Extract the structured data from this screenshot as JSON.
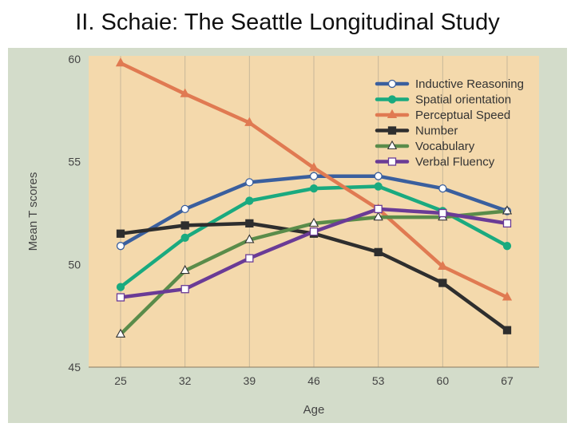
{
  "page": {
    "title": "II. Schaie: The Seattle Longitudinal Study"
  },
  "colors": {
    "panel_bg": "#d3dcca",
    "plot_bg": "#f4d9ac",
    "grid": "#c8b89a"
  },
  "chart_data": {
    "type": "line",
    "title": "",
    "xlabel": "Age",
    "ylabel": "Mean T scores",
    "categories": [
      "25",
      "32",
      "39",
      "46",
      "53",
      "60",
      "67"
    ],
    "ylim": [
      45,
      60
    ],
    "yticks": [
      "45",
      "50",
      "55",
      "60"
    ],
    "grid": "vertical lines at each age",
    "legend_position": "top-right",
    "series": [
      {
        "name": "Inductive Reasoning",
        "color": "#3a5f9e",
        "marker": "circle-open",
        "values": [
          50.9,
          52.7,
          54.0,
          54.3,
          54.3,
          53.7,
          52.6
        ]
      },
      {
        "name": "Spatial orientation",
        "color": "#1aaa7f",
        "marker": "circle-filled",
        "values": [
          48.9,
          51.3,
          53.1,
          53.7,
          53.8,
          52.6,
          50.9
        ]
      },
      {
        "name": "Perceptual Speed",
        "color": "#e07a52",
        "marker": "triangle-filled",
        "values": [
          59.8,
          58.3,
          56.9,
          54.7,
          52.7,
          49.9,
          48.4
        ]
      },
      {
        "name": "Number",
        "color": "#2e2e2e",
        "marker": "square-filled",
        "values": [
          51.5,
          51.9,
          52.0,
          51.5,
          50.6,
          49.1,
          46.8
        ]
      },
      {
        "name": "Vocabulary",
        "color": "#5a8c4a",
        "marker": "triangle-open",
        "values": [
          46.6,
          49.7,
          51.2,
          52.0,
          52.3,
          52.3,
          52.6
        ]
      },
      {
        "name": "Verbal Fluency",
        "color": "#6a3b96",
        "marker": "square-open",
        "values": [
          48.4,
          48.8,
          50.3,
          51.6,
          52.7,
          52.5,
          52.0
        ]
      }
    ]
  }
}
